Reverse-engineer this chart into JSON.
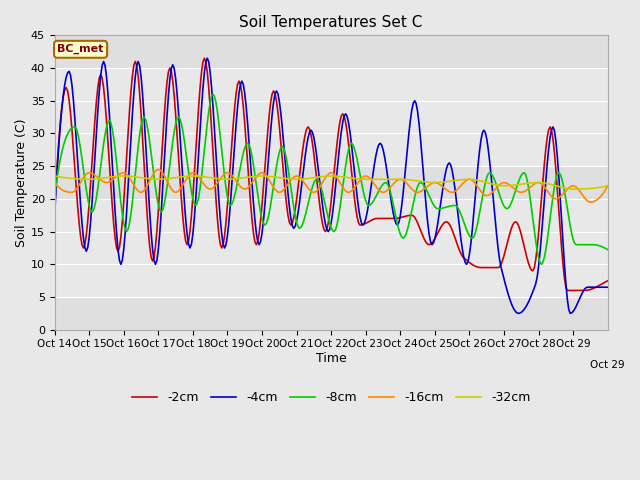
{
  "title": "Soil Temperatures Set C",
  "xlabel": "Time",
  "ylabel": "Soil Temperature (C)",
  "ylim": [
    0,
    45
  ],
  "background_color": "#e8e8e8",
  "plot_bg": "#e8e8e8",
  "legend_label": "BC_met",
  "series": {
    "-2cm": {
      "color": "#cc0000",
      "lw": 1.2
    },
    "-4cm": {
      "color": "#0000cc",
      "lw": 1.2
    },
    "-8cm": {
      "color": "#00cc00",
      "lw": 1.2
    },
    "-16cm": {
      "color": "#ff8800",
      "lw": 1.2
    },
    "-32cm": {
      "color": "#cccc00",
      "lw": 1.2
    }
  },
  "x_tick_positions": [
    0,
    24,
    48,
    72,
    96,
    120,
    144,
    168,
    192,
    216,
    240,
    264,
    288,
    312,
    336,
    360
  ],
  "x_tick_labels": [
    "Oct 14",
    "Oct 15",
    "Oct 16",
    "Oct 17",
    "Oct 18",
    "Oct 19",
    "Oct 20",
    "Oct 21",
    "Oct 22",
    "Oct 23",
    "Oct 24",
    "Oct 25",
    "Oct 26",
    "Oct 27",
    "Oct 28",
    "Oct 29"
  ],
  "x_last_label": "Oct 29",
  "y_ticks": [
    0,
    5,
    10,
    15,
    20,
    25,
    30,
    35,
    40,
    45
  ],
  "n_hours": 384,
  "peaks_2cm": {
    "positions": [
      8,
      32,
      56,
      80,
      104,
      128,
      152,
      176,
      200,
      224,
      248,
      272,
      296,
      320,
      344,
      368
    ],
    "heights": [
      37,
      39,
      41,
      40,
      41.5,
      38,
      36.5,
      31,
      33,
      17,
      17.5,
      16.5,
      9.5,
      16.5,
      31,
      6
    ]
  },
  "troughs_2cm": {
    "positions": [
      0,
      20,
      44,
      68,
      92,
      116,
      140,
      164,
      188,
      212,
      236,
      260,
      284,
      308,
      332,
      356,
      380
    ],
    "heights": [
      18.5,
      12.5,
      12,
      10.5,
      13,
      12.5,
      13,
      16,
      15,
      16,
      17,
      13,
      11,
      9.5,
      9,
      6,
      7
    ]
  },
  "peaks_4cm": {
    "positions": [
      10,
      34,
      58,
      82,
      106,
      130,
      154,
      178,
      202,
      226,
      250,
      274,
      298,
      322,
      346,
      370
    ],
    "heights": [
      39.5,
      41,
      41,
      40.5,
      41.5,
      38,
      36.5,
      30.5,
      33,
      28.5,
      35,
      25.5,
      30.5,
      2.5,
      31,
      6.5
    ]
  },
  "troughs_4cm": {
    "positions": [
      0,
      22,
      46,
      70,
      94,
      118,
      142,
      166,
      190,
      214,
      238,
      262,
      286,
      310,
      334,
      358,
      382
    ],
    "heights": [
      17.5,
      12,
      10,
      10,
      12.5,
      12.5,
      13,
      15.5,
      15,
      16,
      16,
      13,
      10,
      9.5,
      7,
      2.5,
      6.5
    ]
  },
  "peaks_8cm": {
    "positions": [
      14,
      38,
      62,
      86,
      110,
      134,
      158,
      182,
      206,
      230,
      254,
      278,
      302,
      326,
      350,
      374
    ],
    "heights": [
      31,
      32,
      32.5,
      32.5,
      36,
      28.5,
      28,
      23,
      28.5,
      22.5,
      22.5,
      19,
      24,
      24,
      24,
      13
    ]
  },
  "troughs_8cm": {
    "positions": [
      0,
      26,
      50,
      74,
      98,
      122,
      146,
      170,
      194,
      218,
      242,
      266,
      290,
      314,
      338,
      362,
      386
    ],
    "heights": [
      20.5,
      18,
      15,
      18,
      19,
      19,
      16,
      15.5,
      15,
      19,
      14,
      18.5,
      14,
      18.5,
      10,
      13,
      12
    ]
  },
  "peaks_16cm": {
    "positions": [
      0,
      24,
      48,
      72,
      96,
      120,
      144,
      168,
      192,
      216,
      240,
      264,
      288,
      312,
      336,
      360,
      384
    ],
    "heights": [
      22.5,
      24,
      24,
      24.5,
      24,
      24,
      24,
      23.5,
      24,
      23.5,
      23,
      22.5,
      23,
      22.5,
      22.5,
      22,
      22
    ]
  },
  "troughs_16cm": {
    "positions": [
      12,
      36,
      60,
      84,
      108,
      132,
      156,
      180,
      204,
      228,
      252,
      276,
      300,
      324,
      348,
      372
    ],
    "heights": [
      21,
      22.5,
      21,
      21,
      21.5,
      21.5,
      21,
      21,
      21,
      21,
      21,
      21,
      20.5,
      21,
      20,
      19.5
    ]
  },
  "peaks_32cm": {
    "positions": [
      0,
      48,
      96,
      144,
      192,
      240,
      288,
      336,
      384
    ],
    "heights": [
      23.5,
      23.5,
      23.5,
      23.5,
      23.5,
      23,
      23,
      22.5,
      22
    ]
  },
  "troughs_32cm": {
    "positions": [
      24,
      72,
      120,
      168,
      216,
      264,
      312,
      360
    ],
    "heights": [
      23,
      23,
      23,
      23,
      23,
      22.5,
      22,
      21.5
    ]
  }
}
